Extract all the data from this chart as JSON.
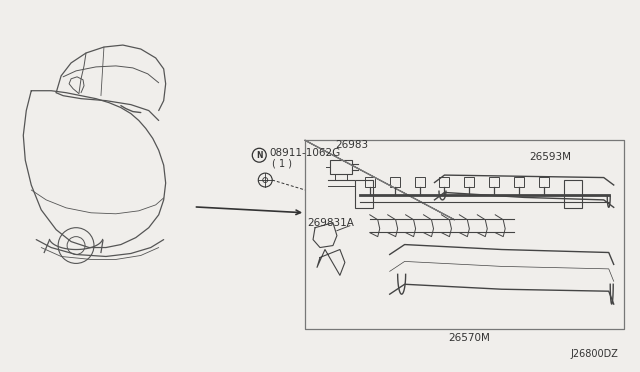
{
  "background_color": "#f0eeeb",
  "diagram_id": "J26800DZ",
  "label_08911": "08911-1062G",
  "label_08911_qty": "( 1 )",
  "label_26983": "26983",
  "label_26593M": "26593M",
  "label_269831A": "269831A",
  "label_26570M": "26570M",
  "car_color": "#555555",
  "part_color": "#444444",
  "box_color": "#777777",
  "text_color": "#333333",
  "font_size_label": 7.5,
  "font_size_id": 7.0
}
